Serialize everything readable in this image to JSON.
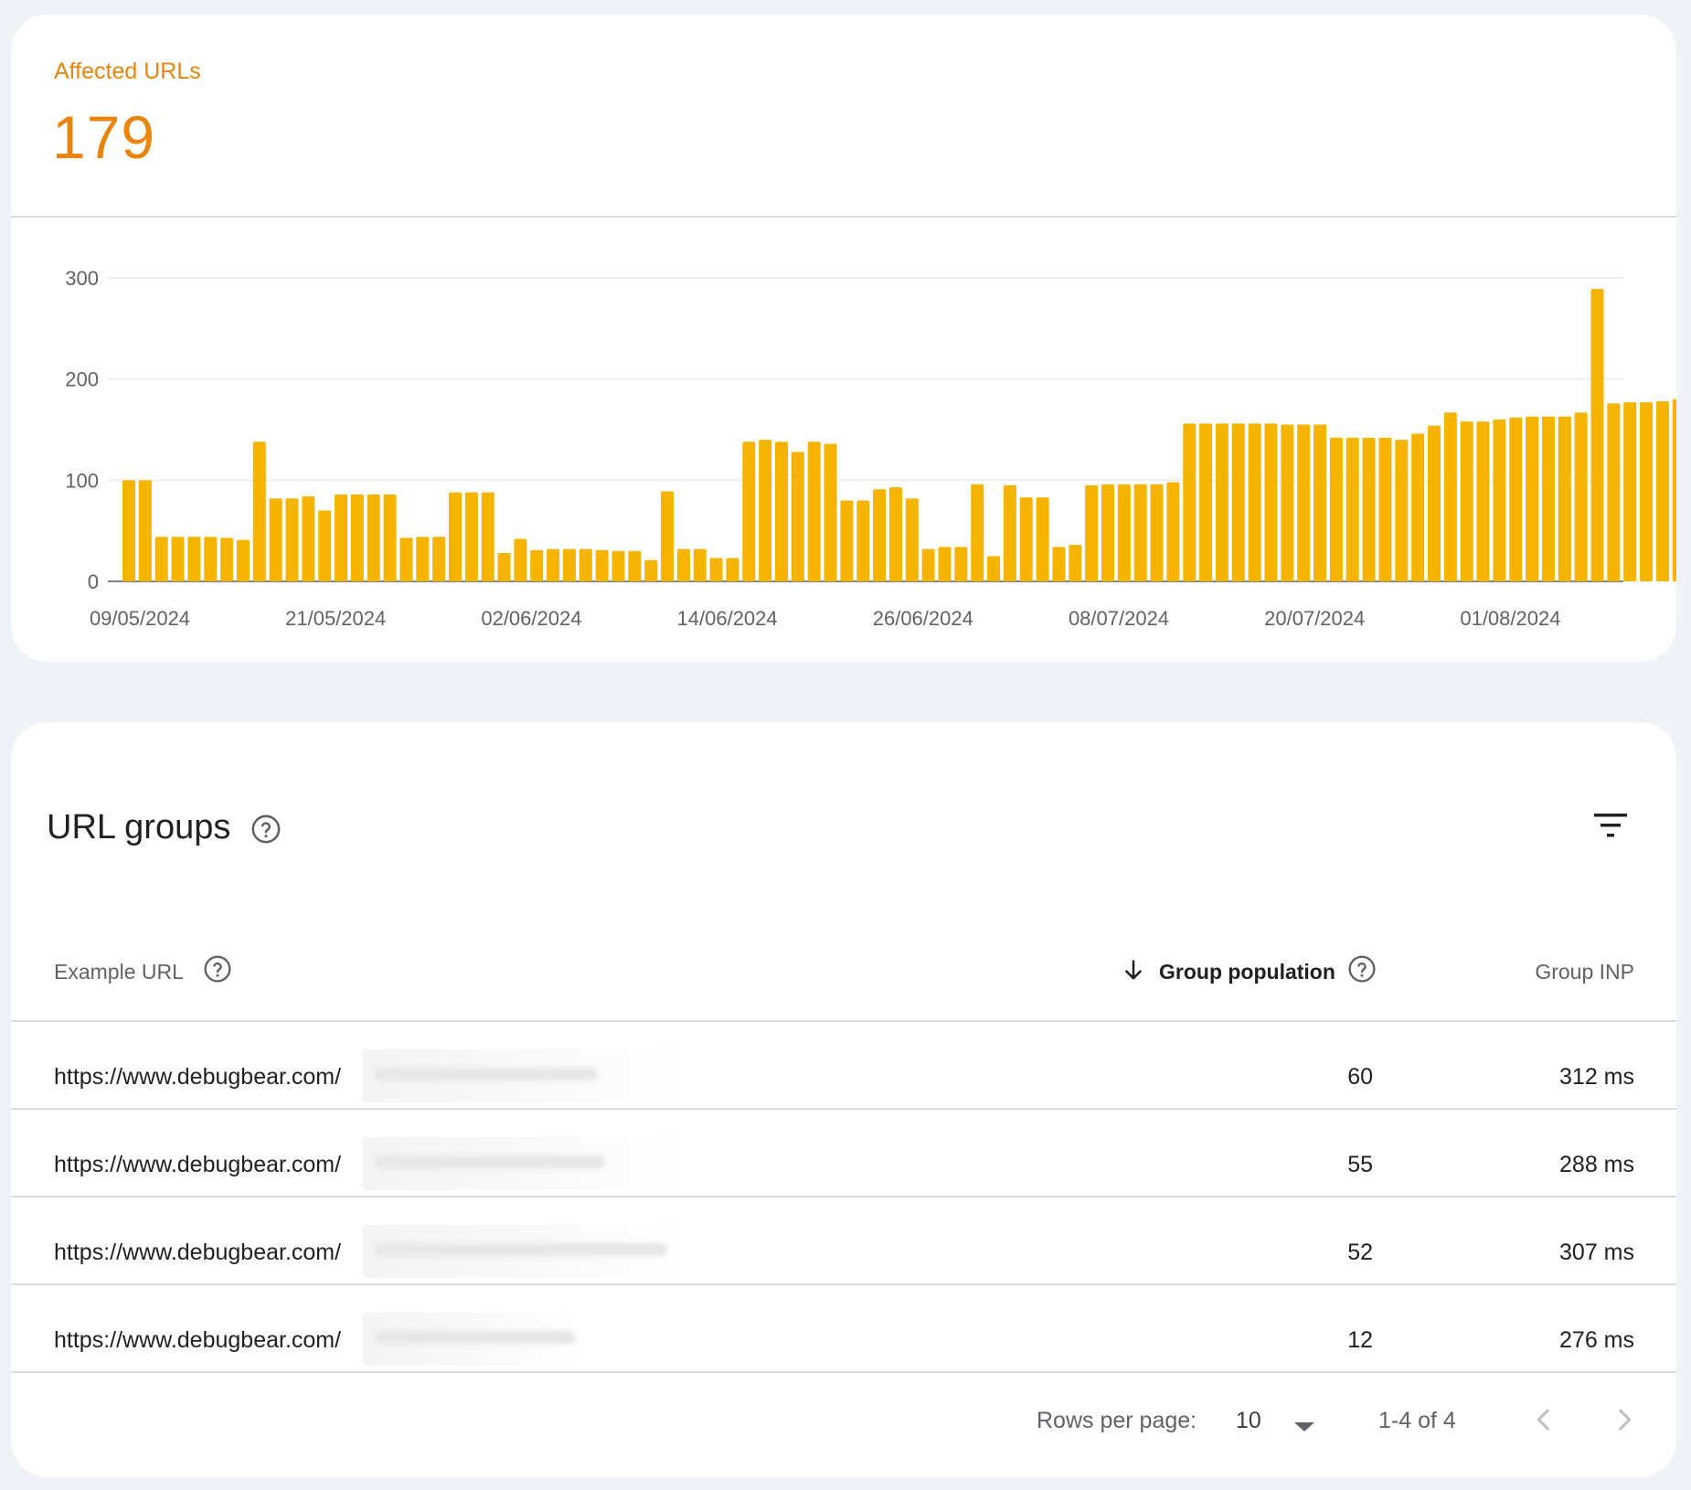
{
  "summary": {
    "label": "Affected URLs",
    "value": "179"
  },
  "chart_data": {
    "type": "bar",
    "title": "",
    "xlabel": "",
    "ylabel": "",
    "ylim": [
      0,
      300
    ],
    "yticks": [
      0,
      100,
      200,
      300
    ],
    "x_tick_labels": [
      "09/05/2024",
      "21/05/2024",
      "02/06/2024",
      "14/06/2024",
      "26/06/2024",
      "08/07/2024",
      "20/07/2024",
      "01/08/2024"
    ],
    "start_date": "09/05/2024",
    "grid": true,
    "legend": "none",
    "bar_color": "#f5b400",
    "values": [
      100,
      100,
      44,
      44,
      44,
      44,
      43,
      41,
      138,
      82,
      82,
      84,
      70,
      86,
      86,
      86,
      86,
      43,
      44,
      44,
      88,
      88,
      88,
      28,
      42,
      31,
      32,
      32,
      32,
      31,
      30,
      30,
      21,
      89,
      32,
      32,
      23,
      23,
      138,
      140,
      138,
      128,
      138,
      136,
      80,
      80,
      91,
      93,
      82,
      32,
      34,
      34,
      96,
      25,
      95,
      83,
      83,
      34,
      36,
      95,
      96,
      96,
      96,
      96,
      98,
      156,
      156,
      156,
      156,
      156,
      156,
      155,
      155,
      155,
      142,
      142,
      142,
      142,
      140,
      146,
      154,
      167,
      158,
      158,
      160,
      162,
      163,
      163,
      163,
      167,
      289,
      176,
      177,
      177,
      178,
      180
    ]
  },
  "table": {
    "title": "URL groups",
    "columns": {
      "url": "Example URL",
      "population": "Group population",
      "inp": "Group INP"
    },
    "rows": [
      {
        "url": "https://www.debugbear.com/",
        "population": "60",
        "inp": "312 ms"
      },
      {
        "url": "https://www.debugbear.com/",
        "population": "55",
        "inp": "288 ms"
      },
      {
        "url": "https://www.debugbear.com/",
        "population": "52",
        "inp": "307 ms"
      },
      {
        "url": "https://www.debugbear.com/",
        "population": "12",
        "inp": "276 ms"
      }
    ],
    "footer": {
      "rows_per_page_label": "Rows per page:",
      "rows_per_page_value": "10",
      "range": "1-4 of 4"
    }
  },
  "icons": {
    "help": "help-circle-icon",
    "filter": "filter-list-icon",
    "sort": "arrow-down-icon",
    "dropdown": "caret-down-icon",
    "prev": "chevron-left-icon",
    "next": "chevron-right-icon"
  }
}
